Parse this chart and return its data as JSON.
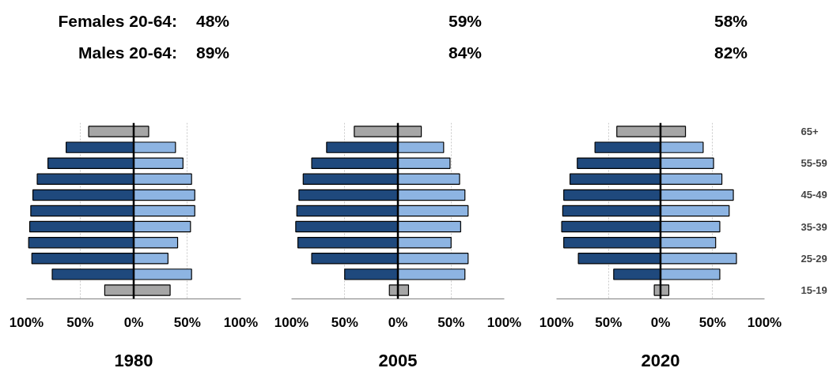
{
  "chart_data": [
    {
      "type": "bar",
      "orientation": "horizontal",
      "stacked": true,
      "xlabel": "1980",
      "annotations": [
        "Females 20-64:",
        "48%",
        "Males 20-64:",
        "89%"
      ],
      "categories": [
        null,
        null,
        null,
        null,
        null,
        null,
        null,
        null,
        null,
        null,
        null
      ],
      "grid": "x",
      "xlim": [
        -100,
        100
      ],
      "xticks": [
        {
          "value": -100,
          "label": "100%"
        },
        {
          "value": -50,
          "label": "50%"
        },
        {
          "value": 0,
          "label": "0%"
        },
        {
          "value": 50,
          "label": "50%"
        },
        {
          "value": 100,
          "label": "100%"
        }
      ],
      "ref_lines": [
        {
          "axis": "x",
          "value": 0,
          "label": null,
          "color": "#000000"
        }
      ],
      "series": [
        {
          "values": [
            -42,
            -63,
            -80,
            -90,
            -94,
            -96,
            -97,
            -98,
            -95,
            -76,
            -27
          ],
          "colors": [
            "#a6a6a6",
            "#1f497d",
            "#1f497d",
            "#1f497d",
            "#1f497d",
            "#1f497d",
            "#1f497d",
            "#1f497d",
            "#1f497d",
            "#1f497d",
            "#a6a6a6"
          ]
        },
        {
          "values": [
            14,
            39,
            46,
            54,
            57,
            57,
            53,
            41,
            32,
            54,
            34
          ],
          "colors": [
            "#a6a6a6",
            "#8db4e2",
            "#8db4e2",
            "#8db4e2",
            "#8db4e2",
            "#8db4e2",
            "#8db4e2",
            "#8db4e2",
            "#8db4e2",
            "#8db4e2",
            "#a6a6a6"
          ]
        }
      ]
    },
    {
      "type": "bar",
      "orientation": "horizontal",
      "stacked": true,
      "xlabel": "2005",
      "annotations": [
        "59%",
        "84%"
      ],
      "categories": [
        null,
        null,
        null,
        null,
        null,
        null,
        null,
        null,
        null,
        null,
        null
      ],
      "grid": "x",
      "xlim": [
        -100,
        100
      ],
      "xticks": [
        {
          "value": -100,
          "label": "100%"
        },
        {
          "value": -50,
          "label": "50%"
        },
        {
          "value": 0,
          "label": "0%"
        },
        {
          "value": 50,
          "label": "50%"
        },
        {
          "value": 100,
          "label": "100%"
        }
      ],
      "ref_lines": [
        {
          "axis": "x",
          "value": 0,
          "label": null,
          "color": "#000000"
        }
      ],
      "series": [
        {
          "values": [
            -41,
            -67,
            -81,
            -89,
            -93,
            -95,
            -96,
            -94,
            -81,
            -50,
            -8
          ],
          "colors": [
            "#a6a6a6",
            "#1f497d",
            "#1f497d",
            "#1f497d",
            "#1f497d",
            "#1f497d",
            "#1f497d",
            "#1f497d",
            "#1f497d",
            "#1f497d",
            "#a6a6a6"
          ]
        },
        {
          "values": [
            22,
            43,
            49,
            58,
            63,
            66,
            59,
            50,
            66,
            63,
            10
          ],
          "colors": [
            "#a6a6a6",
            "#8db4e2",
            "#8db4e2",
            "#8db4e2",
            "#8db4e2",
            "#8db4e2",
            "#8db4e2",
            "#8db4e2",
            "#8db4e2",
            "#8db4e2",
            "#a6a6a6"
          ]
        }
      ]
    },
    {
      "type": "bar",
      "orientation": "horizontal",
      "stacked": true,
      "xlabel": "2020",
      "annotations": [
        "58%",
        "82%"
      ],
      "categories": [
        "65+",
        null,
        "55-59",
        null,
        "45-49",
        null,
        "35-39",
        null,
        "25-29",
        null,
        "15-19"
      ],
      "grid": "x",
      "xlim": [
        -100,
        100
      ],
      "xticks": [
        {
          "value": -100,
          "label": "100%"
        },
        {
          "value": -50,
          "label": "50%"
        },
        {
          "value": 0,
          "label": "0%"
        },
        {
          "value": 50,
          "label": "50%"
        },
        {
          "value": 100,
          "label": "100%"
        }
      ],
      "ref_lines": [
        {
          "axis": "x",
          "value": 0,
          "label": null,
          "color": "#000000"
        }
      ],
      "series": [
        {
          "values": [
            -42,
            -63,
            -80,
            -87,
            -93,
            -94,
            -95,
            -93,
            -79,
            -45,
            -6
          ],
          "colors": [
            "#a6a6a6",
            "#1f497d",
            "#1f497d",
            "#1f497d",
            "#1f497d",
            "#1f497d",
            "#1f497d",
            "#1f497d",
            "#1f497d",
            "#1f497d",
            "#a6a6a6"
          ]
        },
        {
          "values": [
            24,
            41,
            51,
            59,
            70,
            66,
            57,
            53,
            73,
            57,
            8
          ],
          "colors": [
            "#a6a6a6",
            "#8db4e2",
            "#8db4e2",
            "#8db4e2",
            "#8db4e2",
            "#8db4e2",
            "#8db4e2",
            "#8db4e2",
            "#8db4e2",
            "#8db4e2",
            "#a6a6a6"
          ]
        }
      ]
    }
  ]
}
